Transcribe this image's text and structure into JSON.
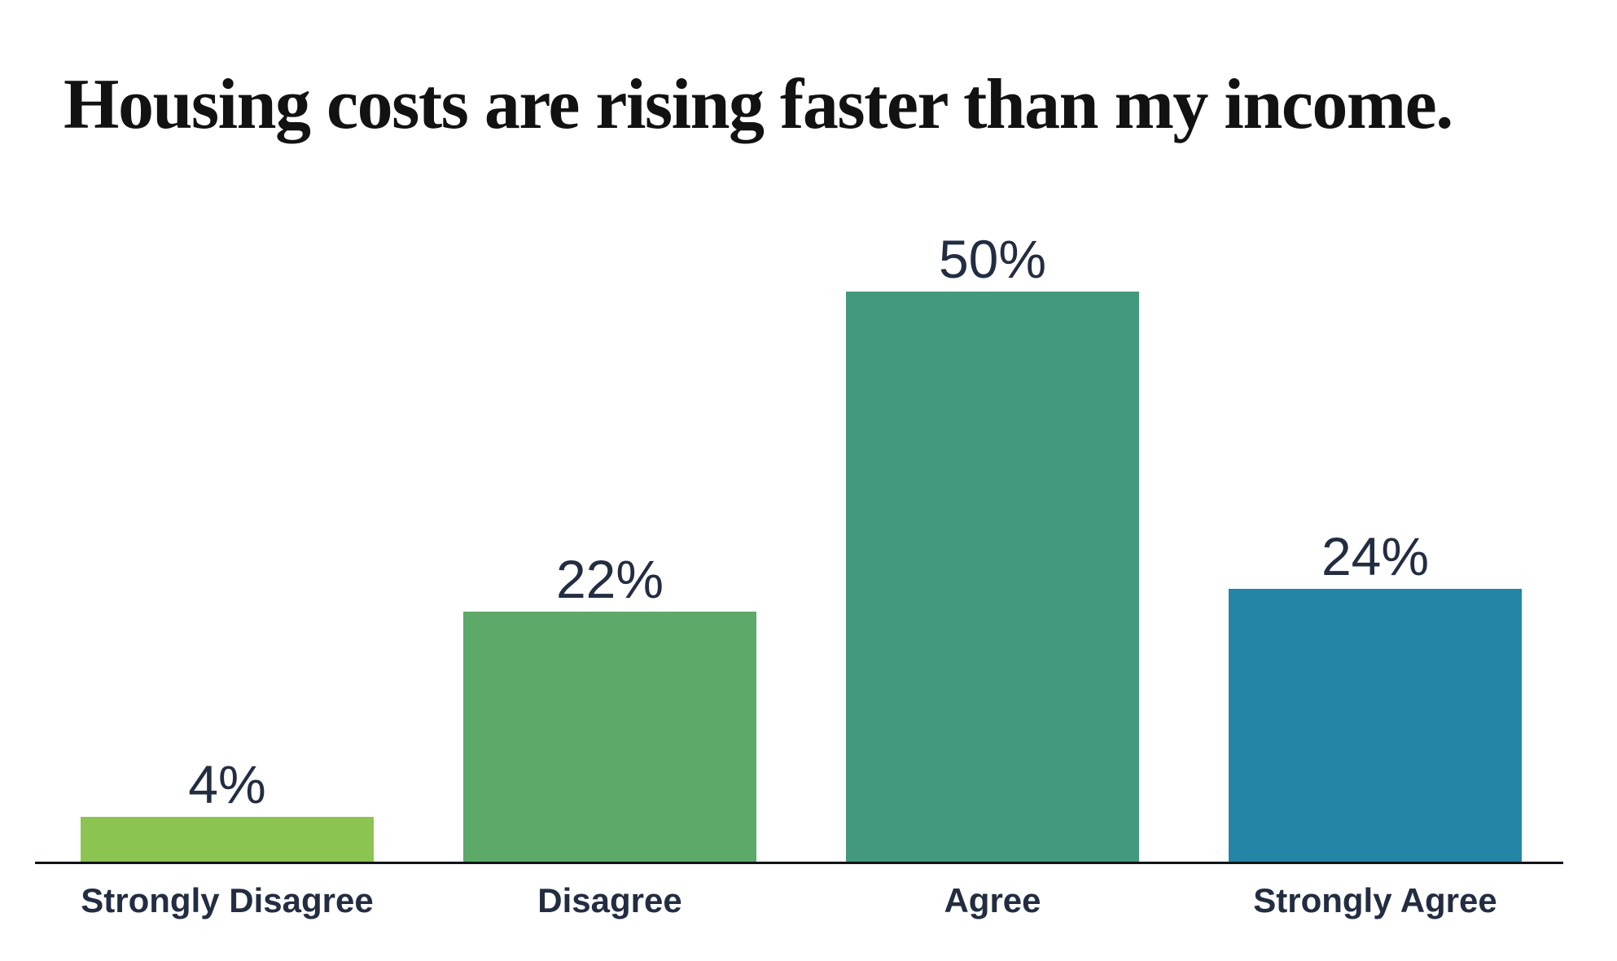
{
  "title": "Housing costs are rising faster than my income.",
  "colors": {
    "background": "#ffffff",
    "title_text": "#121212",
    "label_text": "#232d42",
    "axis_line": "#101418"
  },
  "chart_data": {
    "type": "bar",
    "title": "Housing costs are rising faster than my income.",
    "categories": [
      "Strongly Disagree",
      "Disagree",
      "Agree",
      "Strongly Agree"
    ],
    "values": [
      4,
      22,
      50,
      24
    ],
    "value_labels": [
      "4%",
      "22%",
      "50%",
      "24%"
    ],
    "bar_colors": [
      "#8cc452",
      "#5ca969",
      "#42997e",
      "#2585a6"
    ],
    "xlabel": "",
    "ylabel": "",
    "ylim": [
      0,
      50
    ],
    "grid": false,
    "legend": "none",
    "value_label_position": "above-bars",
    "axis": "x-baseline-only"
  }
}
